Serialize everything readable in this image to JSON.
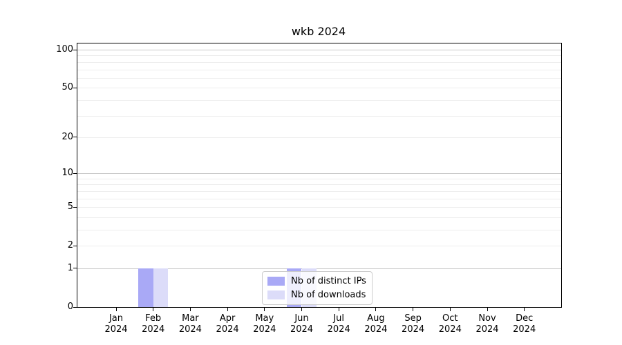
{
  "title": "wkb 2024",
  "chart_data": {
    "type": "bar",
    "title": "wkb 2024",
    "categories": [
      "Jan 2024",
      "Feb 2024",
      "Mar 2024",
      "Apr 2024",
      "May 2024",
      "Jun 2024",
      "Jul 2024",
      "Aug 2024",
      "Sep 2024",
      "Oct 2024",
      "Nov 2024",
      "Dec 2024"
    ],
    "series": [
      {
        "name": "Nb of distinct IPs",
        "color": "#a9a9f6",
        "values": [
          0,
          1,
          0,
          0,
          0,
          1,
          0,
          0,
          0,
          0,
          0,
          0
        ]
      },
      {
        "name": "Nb of downloads",
        "color": "#dcdcf9",
        "values": [
          0,
          1,
          0,
          0,
          0,
          1,
          0,
          0,
          0,
          0,
          0,
          0
        ]
      }
    ],
    "xlabel": "",
    "ylabel": "",
    "y_scale": "log1p",
    "ylim": [
      0,
      112
    ],
    "y_ticks": [
      0,
      1,
      2,
      5,
      10,
      20,
      50,
      100
    ],
    "y_gridlines_major": [
      1,
      10,
      100
    ],
    "y_gridlines_minor": [
      2,
      3,
      4,
      5,
      6,
      7,
      8,
      9,
      20,
      30,
      40,
      50,
      60,
      70,
      80,
      90
    ],
    "grid_color_major": "#c8c8c8",
    "grid_color_minor": "#ededed",
    "axis_color": "#000000",
    "legend": {
      "position": "lower center"
    }
  }
}
